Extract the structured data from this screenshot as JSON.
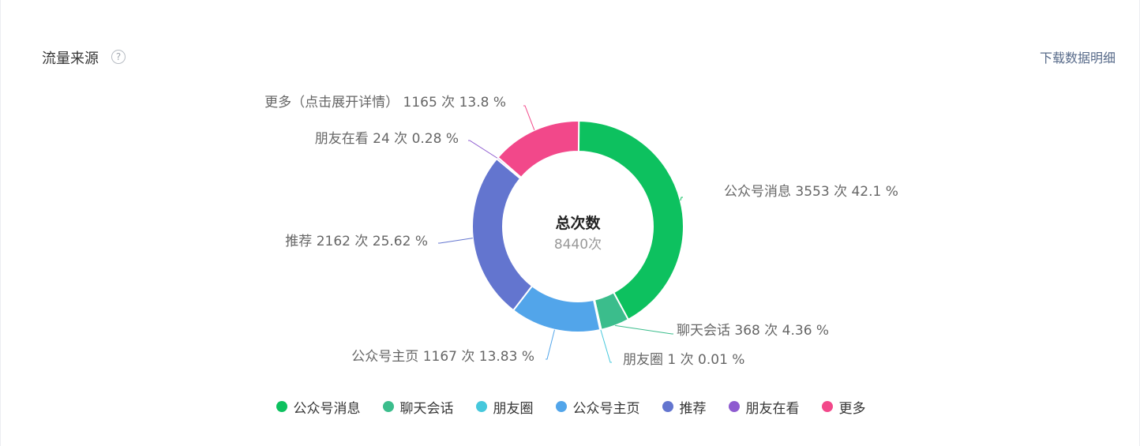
{
  "header": {
    "title": "流量来源",
    "help_icon": "question-circle-icon",
    "download_label": "下载数据明细"
  },
  "chart_data": {
    "type": "pie",
    "center_title": "总次数",
    "center_value": "8440次",
    "slices": [
      {
        "name": "公众号消息",
        "value": 3553,
        "percent": 42.1,
        "label": "公众号消息 3553 次 42.1 %",
        "color": "#0dc15f"
      },
      {
        "name": "聊天会话",
        "value": 368,
        "percent": 4.36,
        "label": "聊天会话 368 次 4.36 %",
        "color": "#3bbd8c"
      },
      {
        "name": "朋友圈",
        "value": 1,
        "percent": 0.01,
        "label": "朋友圈 1 次 0.01 %",
        "color": "#46c8dc"
      },
      {
        "name": "公众号主页",
        "value": 1167,
        "percent": 13.83,
        "label": "公众号主页 1167 次 13.83 %",
        "color": "#52a5ea"
      },
      {
        "name": "推荐",
        "value": 2162,
        "percent": 25.62,
        "label": "推荐 2162 次 25.62 %",
        "color": "#6375cf"
      },
      {
        "name": "朋友在看",
        "value": 24,
        "percent": 0.28,
        "label": "朋友在看 24 次 0.28 %",
        "color": "#8e5bd0"
      },
      {
        "name": "更多",
        "value": 1165,
        "percent": 13.8,
        "label": "更多（点击展开详情） 1165 次 13.8 %",
        "color": "#f2488a"
      }
    ],
    "legend": [
      "公众号消息",
      "聊天会话",
      "朋友圈",
      "公众号主页",
      "推荐",
      "朋友在看",
      "更多"
    ],
    "legend_position": "bottom"
  }
}
